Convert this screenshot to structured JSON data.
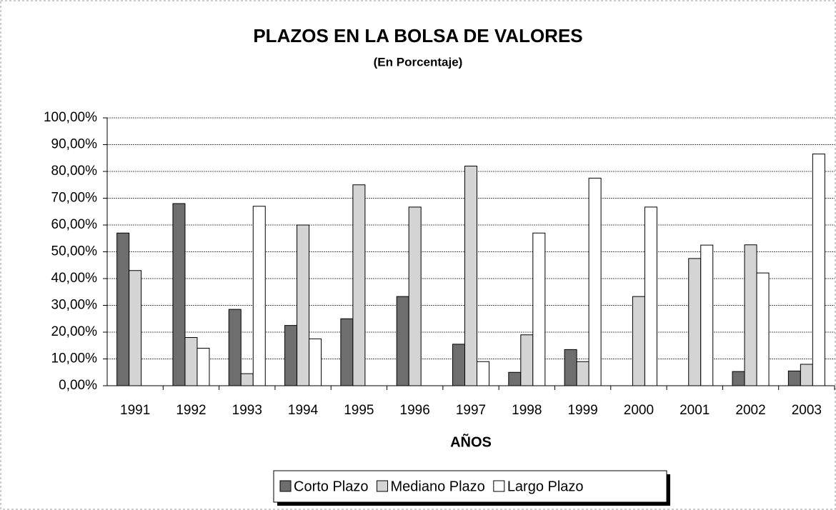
{
  "chart_data": {
    "type": "bar",
    "title": "PLAZOS EN LA BOLSA DE VALORES",
    "subtitle": "(En Porcentaje)",
    "x_label": "AÑOS",
    "categories": [
      "1991",
      "1992",
      "1993",
      "1994",
      "1995",
      "1996",
      "1997",
      "1998",
      "1999",
      "2000",
      "2001",
      "2002",
      "2003"
    ],
    "series": [
      {
        "name": "Corto Plazo",
        "color": "#6e6e6e",
        "values": [
          57,
          68,
          28.5,
          22.5,
          25,
          33.3,
          15.5,
          5,
          13.5,
          0,
          0,
          5.3,
          5.5
        ]
      },
      {
        "name": "Mediano Plazo",
        "color": "#d4d4d4",
        "values": [
          43,
          18,
          4.5,
          60,
          75,
          66.7,
          82,
          19,
          9,
          33.3,
          47.5,
          52.6,
          8
        ]
      },
      {
        "name": "Largo Plazo",
        "color": "#ffffff",
        "values": [
          0,
          14,
          67,
          17.5,
          0,
          0,
          9,
          57,
          77.5,
          66.7,
          52.5,
          42.1,
          86.5
        ]
      }
    ],
    "ylim": [
      0,
      100
    ],
    "yticks": [
      {
        "value": 0,
        "label": "0,00%"
      },
      {
        "value": 10,
        "label": "10,00%"
      },
      {
        "value": 20,
        "label": "20,00%"
      },
      {
        "value": 30,
        "label": "30,00%"
      },
      {
        "value": 40,
        "label": "40,00%"
      },
      {
        "value": 50,
        "label": "50,00%"
      },
      {
        "value": 60,
        "label": "60,00%"
      },
      {
        "value": 70,
        "label": "70,00%"
      },
      {
        "value": 80,
        "label": "80,00%"
      },
      {
        "value": 90,
        "label": "90,00%"
      },
      {
        "value": 100,
        "label": "100,00%"
      }
    ],
    "grid": true,
    "legend": "bottom"
  }
}
